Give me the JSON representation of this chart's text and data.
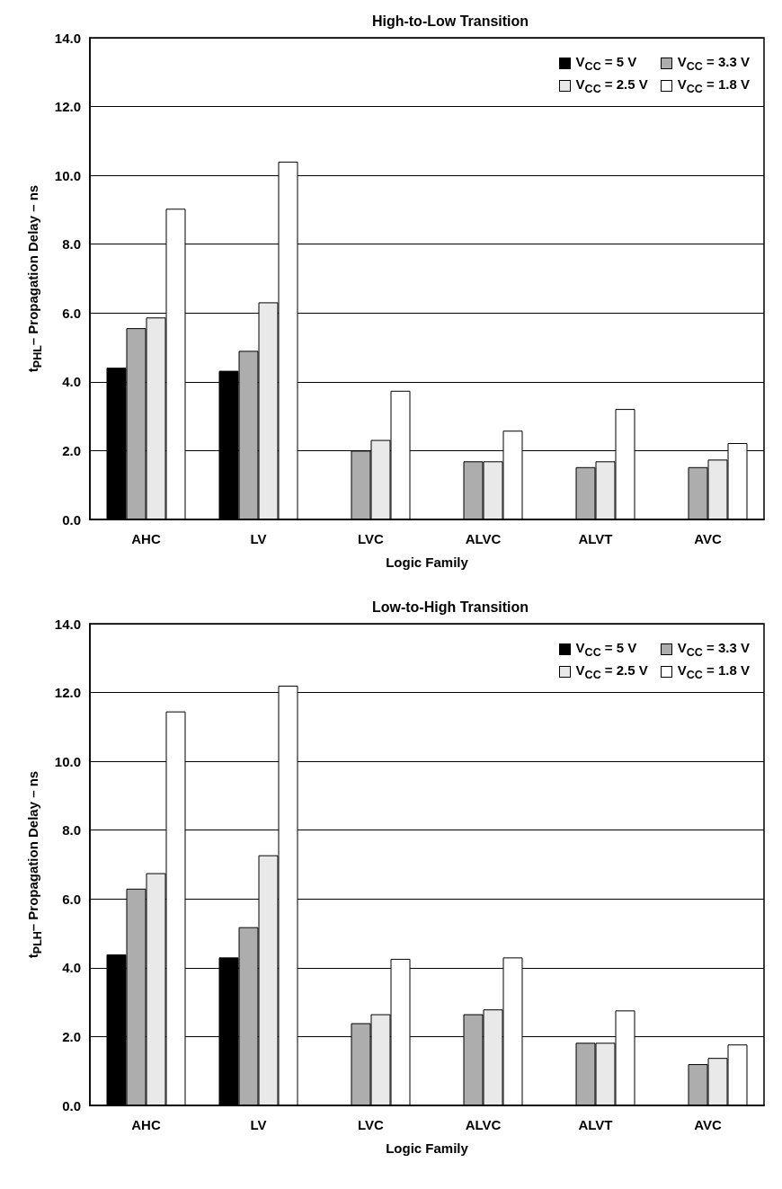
{
  "chart_data": [
    {
      "type": "bar",
      "title": "High-to-Low Transition",
      "xlabel": "Logic Family",
      "ylabel": "t$_{PHL}$– Propagation Delay – ns",
      "categories": [
        "AHC",
        "LV",
        "LVC",
        "ALVC",
        "ALVT",
        "AVC"
      ],
      "series": [
        {
          "name": "V$_{CC}$ = 5 V",
          "color": "#000000",
          "values": [
            4.41,
            4.32,
            null,
            null,
            null,
            null
          ]
        },
        {
          "name": "V$_{CC}$ = 3.3 V",
          "color": "#adadad",
          "values": [
            5.56,
            4.9,
            2.0,
            1.69,
            1.52,
            1.52
          ]
        },
        {
          "name": "V$_{CC}$ = 2.5 V",
          "color": "#e9e9e9",
          "values": [
            5.87,
            6.31,
            2.31,
            1.69,
            1.69,
            1.74
          ]
        },
        {
          "name": "V$_{CC}$ = 1.8 V",
          "color": "#ffffff",
          "values": [
            9.03,
            10.4,
            3.74,
            2.58,
            3.21,
            2.22
          ]
        }
      ],
      "ylim": [
        0,
        14
      ],
      "yticks": [
        {
          "value": 0,
          "label": "0.0"
        },
        {
          "value": 2,
          "label": "2.0"
        },
        {
          "value": 4,
          "label": "4.0"
        },
        {
          "value": 6,
          "label": "6.0"
        },
        {
          "value": 8,
          "label": "8.0"
        },
        {
          "value": 10,
          "label": "10.0"
        },
        {
          "value": 12,
          "label": "12.0"
        },
        {
          "value": 14,
          "label": "14.0"
        }
      ],
      "grid": "y",
      "legend": "top right"
    },
    {
      "type": "bar",
      "title": "Low-to-High Transition",
      "xlabel": "Logic Family",
      "ylabel": "t$_{PLH}$– Propagation Delay – ns",
      "categories": [
        "AHC",
        "LV",
        "LVC",
        "ALVC",
        "ALVT",
        "AVC"
      ],
      "series": [
        {
          "name": "V$_{CC}$ = 5 V",
          "color": "#000000",
          "values": [
            4.39,
            4.3,
            null,
            null,
            null,
            null
          ]
        },
        {
          "name": "V$_{CC}$ = 3.3 V",
          "color": "#adadad",
          "values": [
            6.3,
            5.18,
            2.39,
            2.65,
            1.82,
            1.2
          ]
        },
        {
          "name": "V$_{CC}$ = 2.5 V",
          "color": "#e9e9e9",
          "values": [
            6.75,
            7.27,
            2.65,
            2.79,
            1.82,
            1.38
          ]
        },
        {
          "name": "V$_{CC}$ = 1.8 V",
          "color": "#ffffff",
          "values": [
            11.45,
            12.2,
            4.26,
            4.3,
            2.76,
            1.77
          ]
        }
      ],
      "ylim": [
        0,
        14
      ],
      "yticks": [
        {
          "value": 0,
          "label": "0.0"
        },
        {
          "value": 2,
          "label": "2.0"
        },
        {
          "value": 4,
          "label": "4.0"
        },
        {
          "value": 6,
          "label": "6.0"
        },
        {
          "value": 8,
          "label": "8.0"
        },
        {
          "value": 10,
          "label": "10.0"
        },
        {
          "value": 12,
          "label": "12.0"
        },
        {
          "value": 14,
          "label": "14.0"
        }
      ],
      "grid": "y",
      "legend": "top right"
    }
  ]
}
